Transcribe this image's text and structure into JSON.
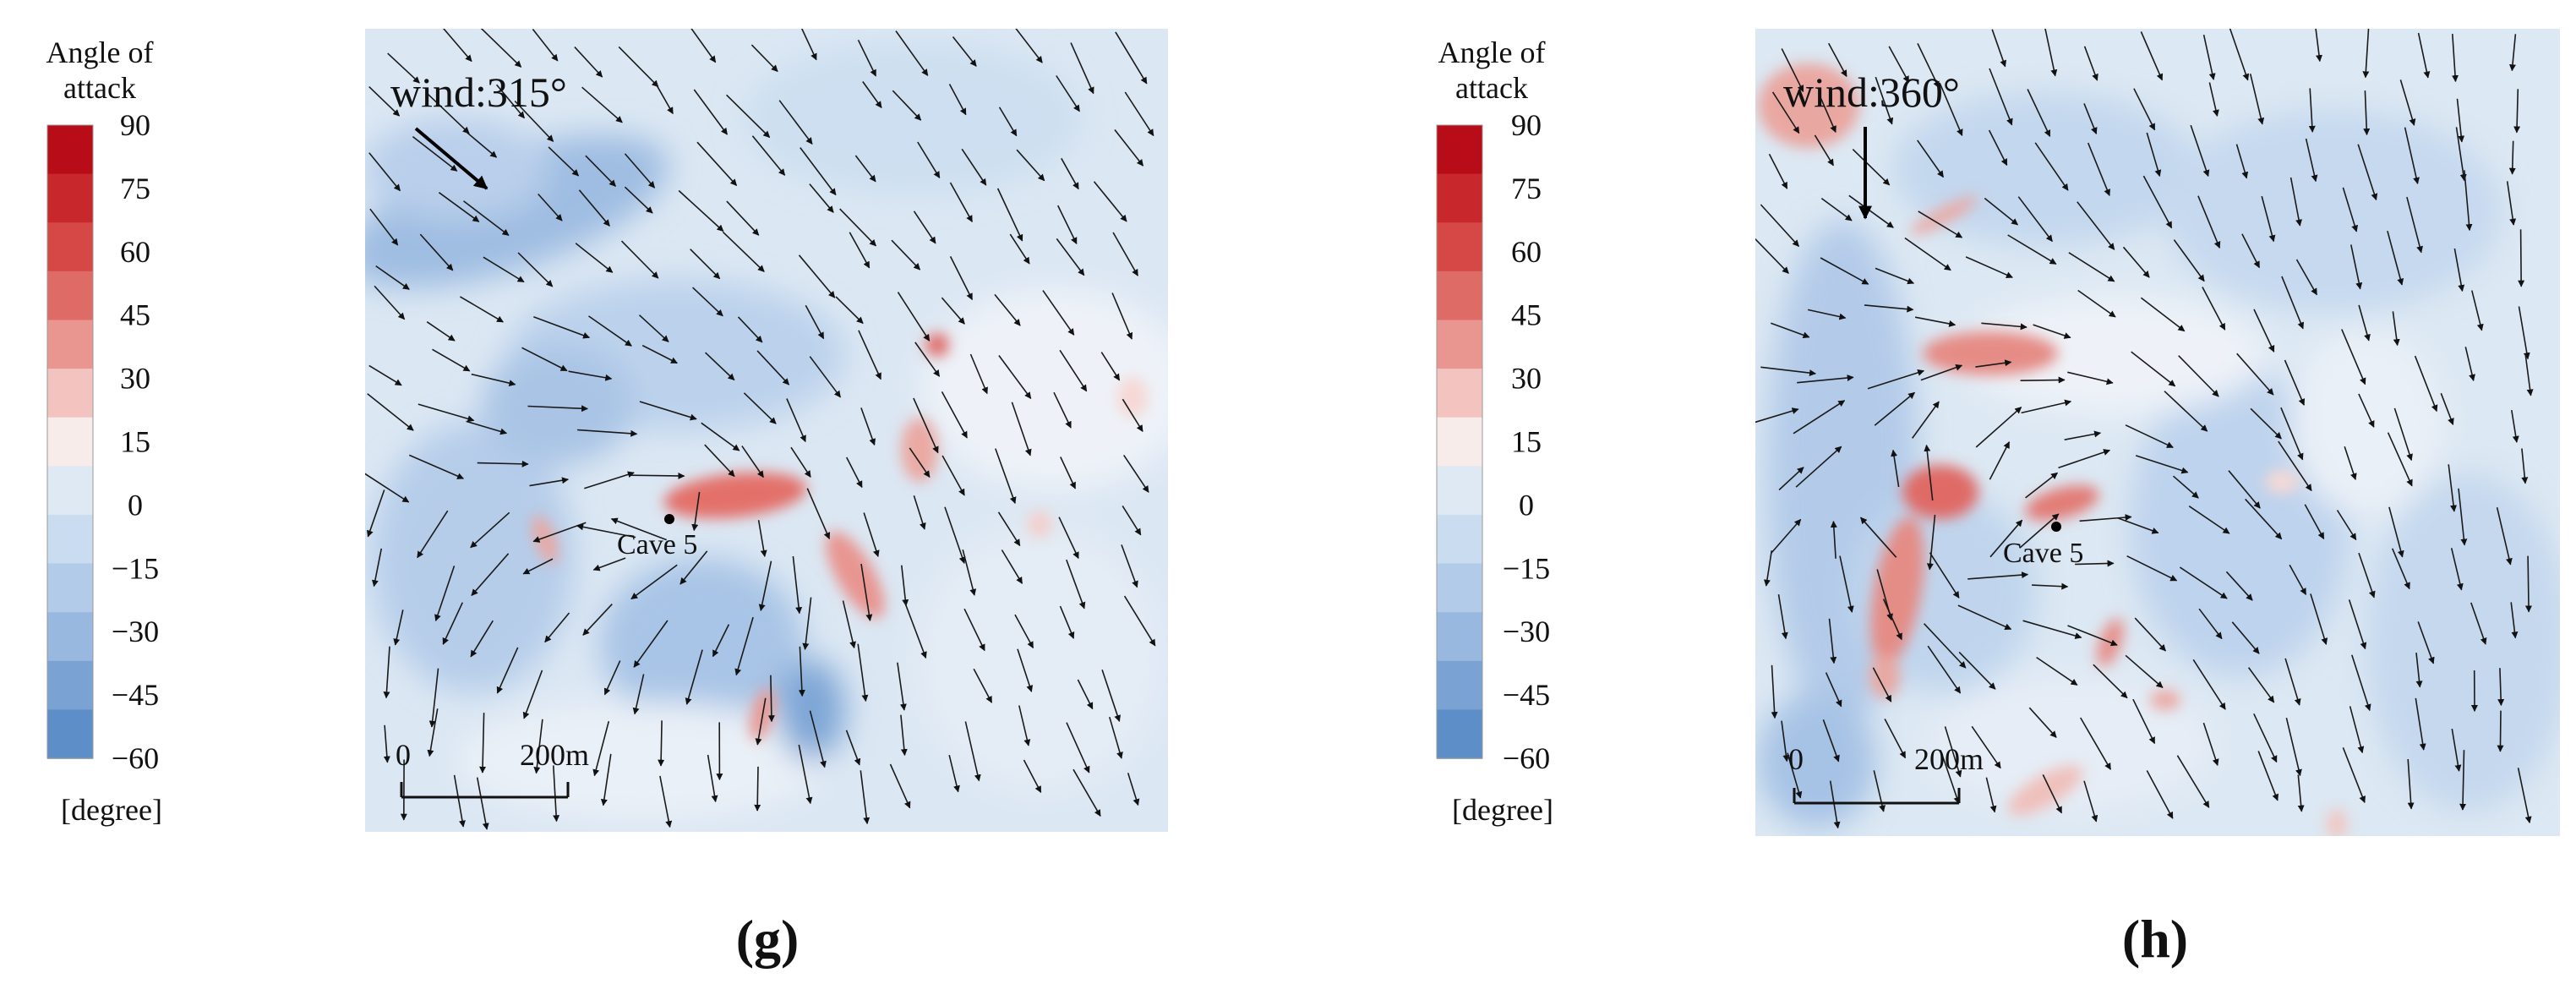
{
  "colorbar": {
    "title_line1": "Angle of",
    "title_line2": "attack",
    "ticks": [
      "90",
      "75",
      "60",
      "45",
      "30",
      "15",
      "0",
      "−15",
      "−30",
      "−45",
      "−60"
    ],
    "unit": "[degree]",
    "colors": [
      "#b80d18",
      "#c8282b",
      "#d54846",
      "#df6b66",
      "#e99690",
      "#f2c3bf",
      "#f8eceb",
      "#dfe9f3",
      "#cadcef",
      "#b2cbe8",
      "#98b8df",
      "#7aa3d4",
      "#5e8ec7"
    ]
  },
  "panels": [
    {
      "id": "g",
      "wind_label": "wind:315°",
      "wind_deg": 315,
      "cave_label": "Cave 5",
      "scale_zero": "0",
      "scale_len": "200m",
      "caption": "(g)"
    },
    {
      "id": "h",
      "wind_label": "wind:360°",
      "wind_deg": 360,
      "cave_label": "Cave 5",
      "scale_zero": "0",
      "scale_len": "200m",
      "caption": "(h)"
    }
  ]
}
